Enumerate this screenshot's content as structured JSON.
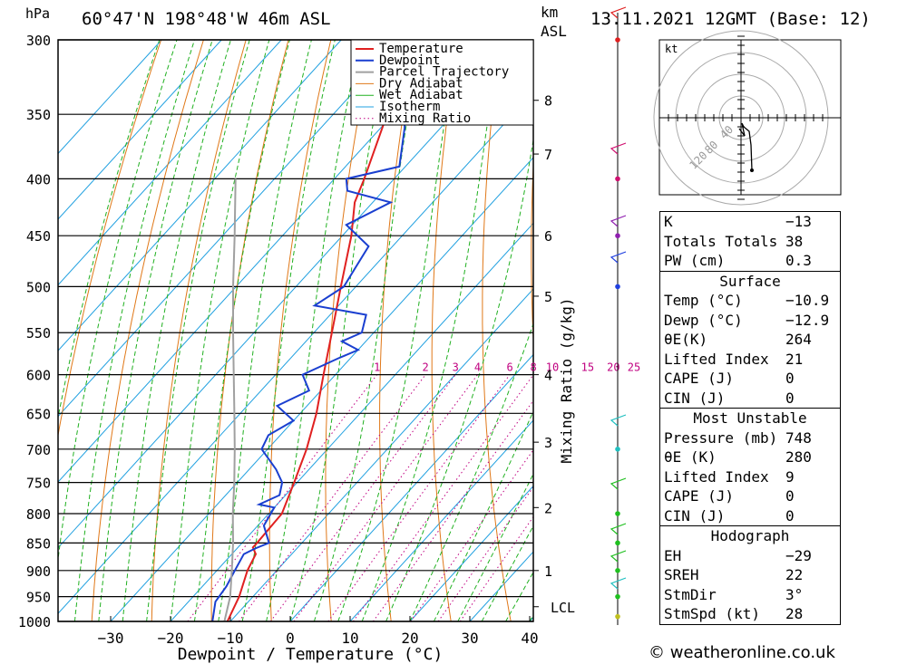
{
  "header": {
    "location": "60°47'N 198°48'W 46m ASL",
    "datetime": "13.11.2021 12GMT (Base: 12)",
    "pressure_unit": "hPa",
    "height_unit": "km",
    "height_unit2": "ASL"
  },
  "legend": [
    "Temperature",
    "Dewpoint",
    "Parcel Trajectory",
    "Dry Adiabat",
    "Wet Adiabat",
    "Isotherm",
    "Mixing Ratio"
  ],
  "colors": {
    "temperature": "#e02020",
    "dewpoint": "#1a3fd0",
    "parcel": "#a0a0a0",
    "dry_adiabat": "#e07818",
    "wet_adiabat": "#20b020",
    "isotherm": "#20a0e0",
    "mixing_ratio": "#c00080"
  },
  "chart_data": {
    "type": "line",
    "title": "60°47'N 198°48'W 46m ASL",
    "xlabel": "Dewpoint / Temperature (°C)",
    "ylabel": "hPa",
    "y2label": "Mixing Ratio (g/kg)",
    "xlim": [
      -40,
      40
    ],
    "ylim": [
      1000,
      300
    ],
    "x_ticks": [
      "−30",
      "−20",
      "−10",
      "0",
      "10",
      "20",
      "30",
      "40"
    ],
    "pressure_levels": [
      "300",
      "350",
      "400",
      "450",
      "500",
      "550",
      "600",
      "650",
      "700",
      "750",
      "800",
      "850",
      "900",
      "950",
      "1000"
    ],
    "km_labels": [
      {
        "label": "8",
        "p": 340
      },
      {
        "label": "7",
        "p": 380
      },
      {
        "label": "6",
        "p": 450
      },
      {
        "label": "5",
        "p": 510
      },
      {
        "label": "4",
        "p": 600
      },
      {
        "label": "3",
        "p": 690
      },
      {
        "label": "2",
        "p": 790
      },
      {
        "label": "1",
        "p": 900
      },
      {
        "label": "LCL",
        "p": 970
      }
    ],
    "mixing_ratio_labels": [
      "1",
      "2",
      "3",
      "4",
      "6",
      "8",
      "10",
      "15",
      "20",
      "25"
    ],
    "series": [
      {
        "name": "Temperature",
        "points": [
          [
            1000,
            -10.5
          ],
          [
            950,
            -12.3
          ],
          [
            900,
            -14.9
          ],
          [
            870,
            -16
          ],
          [
            858,
            -17.5
          ],
          [
            850,
            -17.5
          ],
          [
            800,
            -17.8
          ],
          [
            750,
            -20.5
          ],
          [
            700,
            -23.5
          ],
          [
            650,
            -27.3
          ],
          [
            600,
            -32
          ],
          [
            550,
            -37
          ],
          [
            500,
            -42.5
          ],
          [
            450,
            -48.5
          ],
          [
            420,
            -53
          ],
          [
            400,
            -55
          ],
          [
            350,
            -61
          ],
          [
            310,
            -66.5
          ],
          [
            300,
            -67.5
          ]
        ]
      },
      {
        "name": "Dewpoint",
        "points": [
          [
            1000,
            -13
          ],
          [
            960,
            -15.5
          ],
          [
            930,
            -16
          ],
          [
            900,
            -17
          ],
          [
            870,
            -18
          ],
          [
            860,
            -17
          ],
          [
            850,
            -15.5
          ],
          [
            820,
            -19
          ],
          [
            790,
            -20
          ],
          [
            785,
            -23
          ],
          [
            770,
            -21
          ],
          [
            750,
            -22.5
          ],
          [
            730,
            -25.5
          ],
          [
            700,
            -31
          ],
          [
            680,
            -32
          ],
          [
            660,
            -30
          ],
          [
            640,
            -35
          ],
          [
            620,
            -32
          ],
          [
            600,
            -35.5
          ],
          [
            580,
            -32
          ],
          [
            570,
            -30
          ],
          [
            560,
            -34
          ],
          [
            550,
            -32
          ],
          [
            530,
            -34
          ],
          [
            520,
            -44
          ],
          [
            500,
            -42
          ],
          [
            480,
            -43
          ],
          [
            460,
            -44
          ],
          [
            440,
            -51
          ],
          [
            420,
            -47
          ],
          [
            410,
            -56
          ],
          [
            400,
            -58
          ],
          [
            390,
            -51
          ],
          [
            360,
            -56
          ],
          [
            340,
            -60
          ],
          [
            320,
            -60
          ],
          [
            300,
            -61
          ]
        ]
      },
      {
        "name": "Parcel Trajectory",
        "points": [
          [
            1000,
            -11
          ],
          [
            950,
            -13.8
          ],
          [
            900,
            -17.5
          ],
          [
            850,
            -21.5
          ],
          [
            800,
            -26
          ],
          [
            750,
            -30.5
          ],
          [
            700,
            -35.5
          ],
          [
            650,
            -41
          ],
          [
            600,
            -47
          ],
          [
            550,
            -53.5
          ],
          [
            500,
            -60.5
          ],
          [
            450,
            -68
          ],
          [
            400,
            -76.5
          ]
        ]
      }
    ]
  },
  "hodograph": {
    "unit": "kt",
    "ring_labels": [
      "40",
      "80",
      "120"
    ]
  },
  "indices": {
    "general": [
      {
        "label": "K",
        "value": "−13"
      },
      {
        "label": "Totals Totals",
        "value": "38"
      },
      {
        "label": "PW (cm)",
        "value": "0.3"
      }
    ],
    "surface": {
      "title": "Surface",
      "rows": [
        {
          "label": "Temp (°C)",
          "value": "−10.9"
        },
        {
          "label": "Dewp (°C)",
          "value": "−12.9"
        },
        {
          "label": "θE(K)",
          "value": "264"
        },
        {
          "label": "Lifted Index",
          "value": "21"
        },
        {
          "label": "CAPE (J)",
          "value": "0"
        },
        {
          "label": "CIN (J)",
          "value": "0"
        }
      ]
    },
    "most_unstable": {
      "title": "Most Unstable",
      "rows": [
        {
          "label": "Pressure (mb)",
          "value": "748"
        },
        {
          "label": "θE (K)",
          "value": "280"
        },
        {
          "label": "Lifted Index",
          "value": "9"
        },
        {
          "label": "CAPE (J)",
          "value": "0"
        },
        {
          "label": "CIN (J)",
          "value": "0"
        }
      ]
    },
    "hodograph": {
      "title": "Hodograph",
      "rows": [
        {
          "label": "EH",
          "value": "−29"
        },
        {
          "label": "SREH",
          "value": "22"
        },
        {
          "label": "StmDir",
          "value": "3°"
        },
        {
          "label": "StmSpd (kt)",
          "value": "28"
        }
      ]
    }
  },
  "footer": {
    "copyright": "© weatheronline.co.uk"
  }
}
